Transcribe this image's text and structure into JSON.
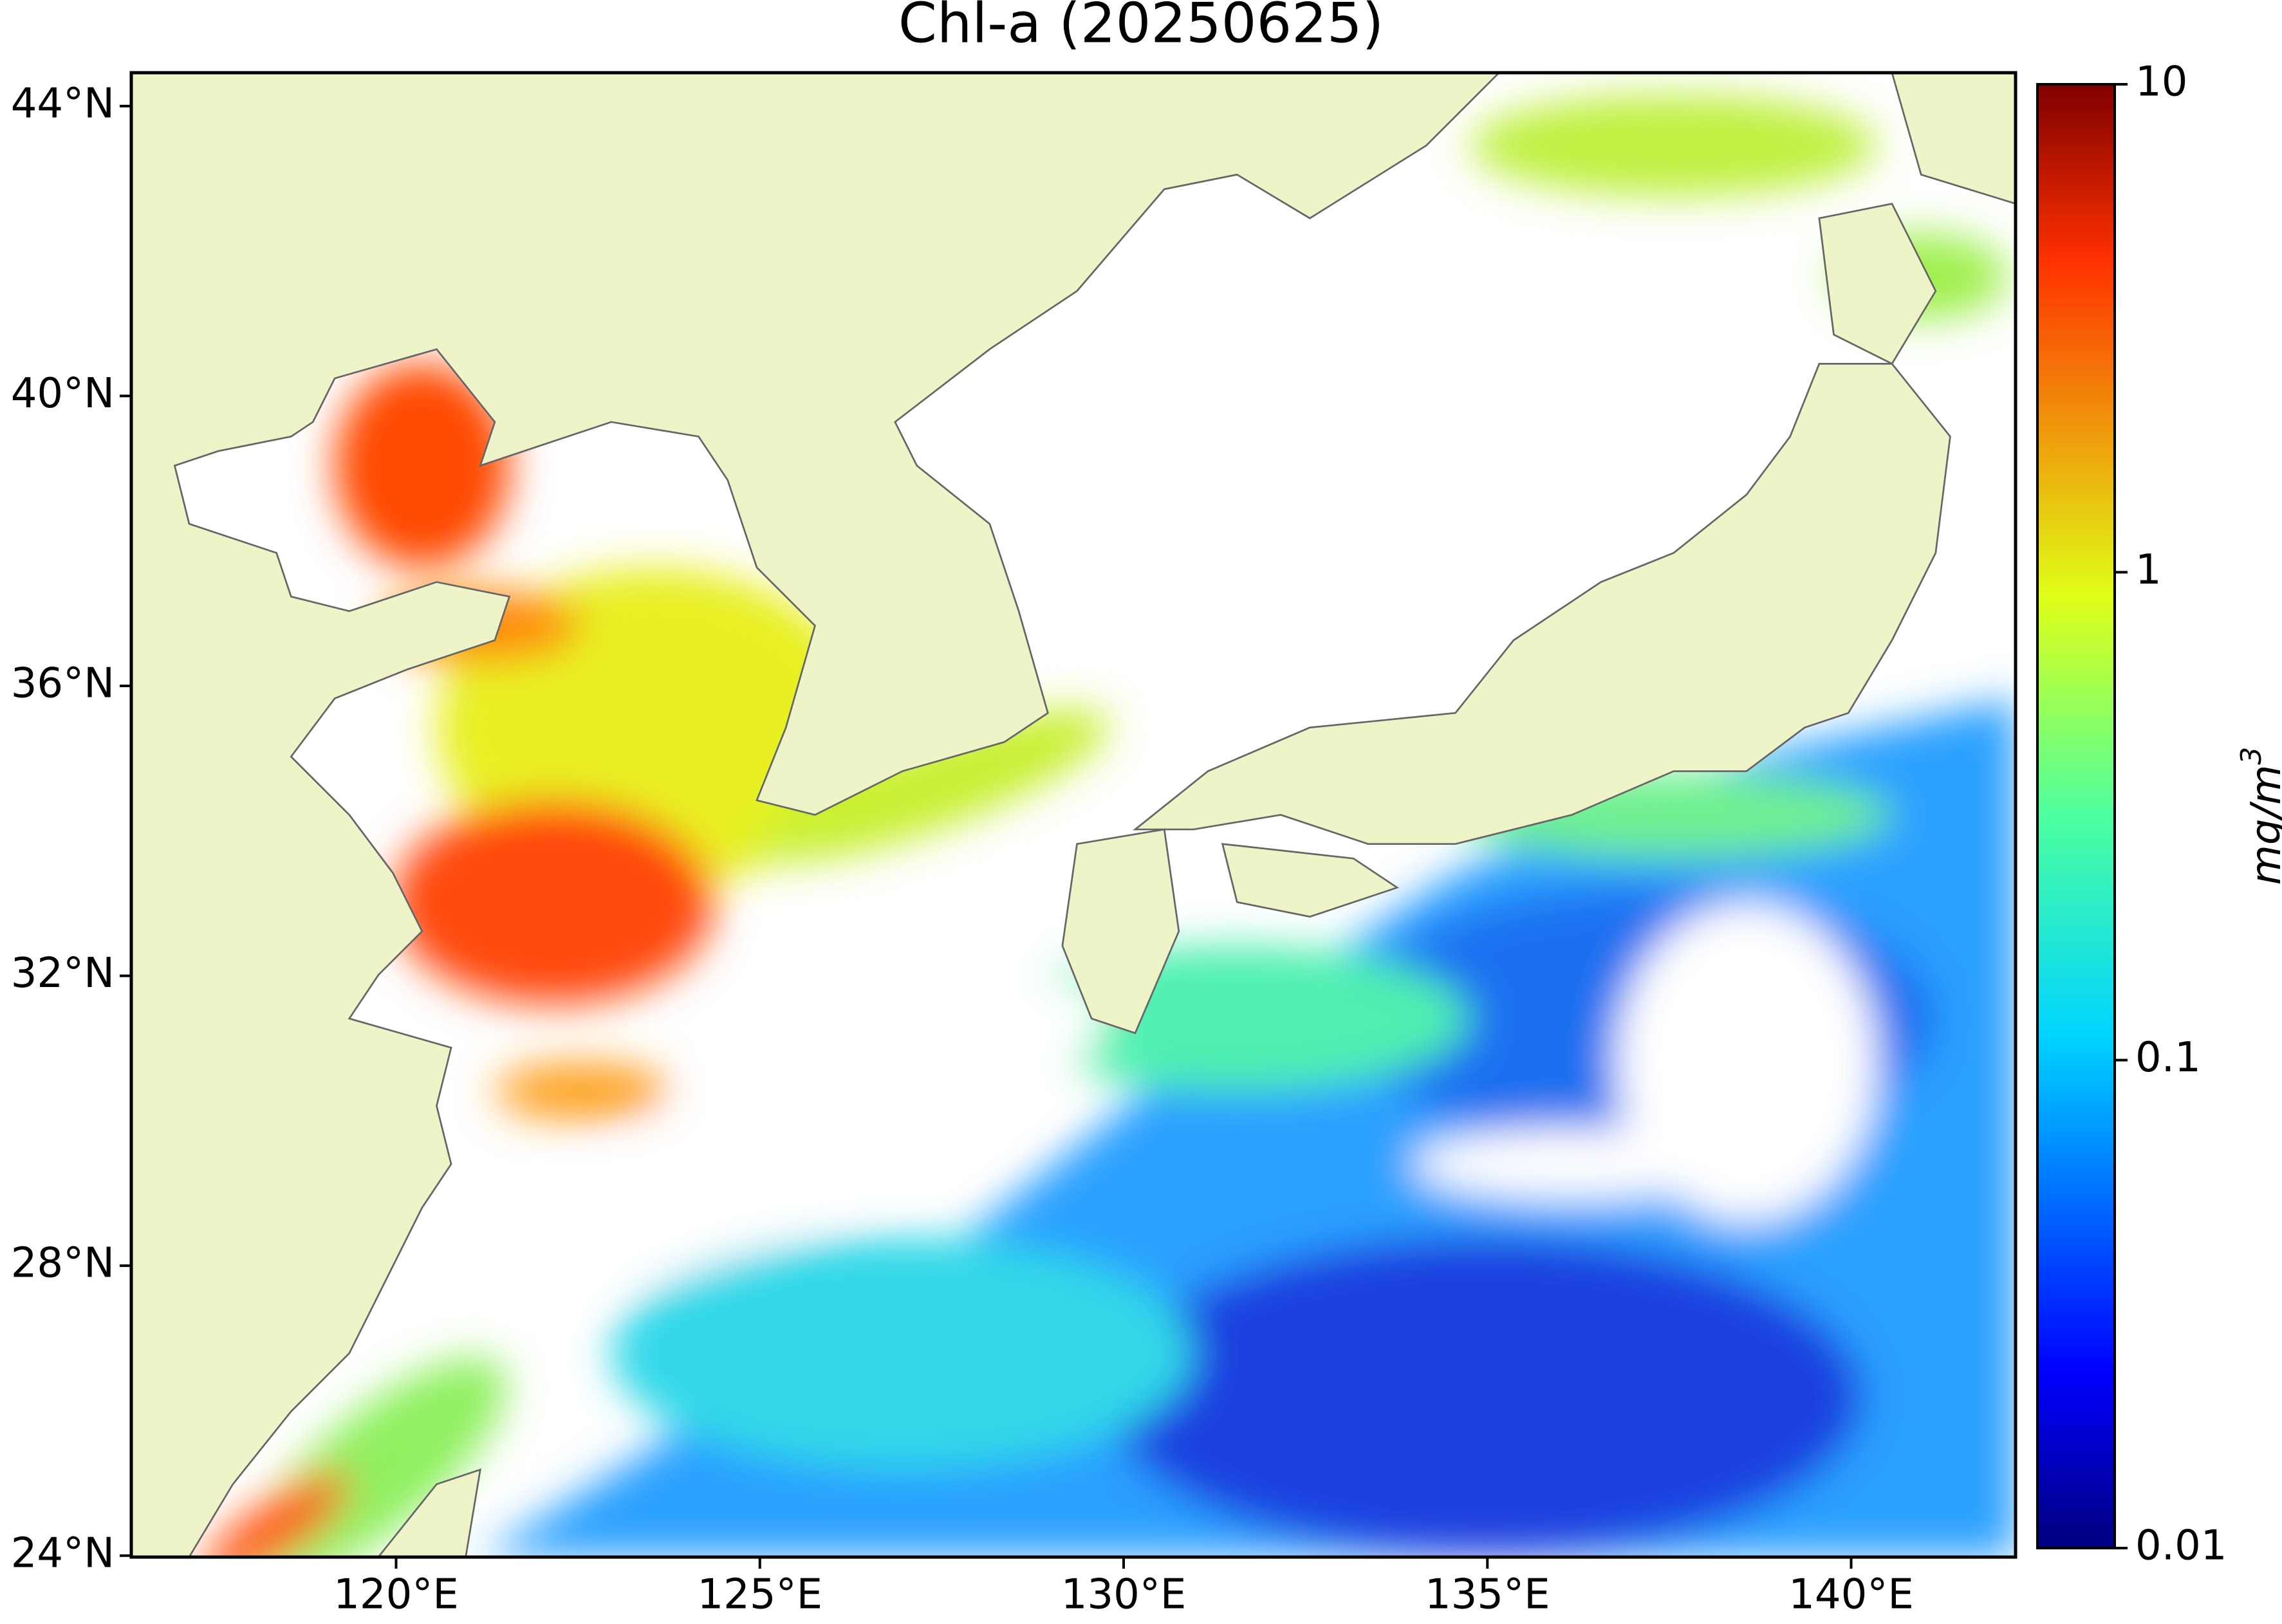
{
  "title": "Chl-a (20250625)",
  "map": {
    "xlim": [
      116.36,
      142.26
    ],
    "ylim": [
      23.98,
      44.46
    ],
    "xticks": [
      {
        "value": 120,
        "label": "120°E"
      },
      {
        "value": 125,
        "label": "125°E"
      },
      {
        "value": 130,
        "label": "130°E"
      },
      {
        "value": 135,
        "label": "135°E"
      },
      {
        "value": 140,
        "label": "140°E"
      }
    ],
    "yticks": [
      {
        "value": 44,
        "label": "44°N"
      },
      {
        "value": 40,
        "label": "40°N"
      },
      {
        "value": 36,
        "label": "36°N"
      },
      {
        "value": 32,
        "label": "32°N"
      },
      {
        "value": 28,
        "label": "28°N"
      },
      {
        "value": 24,
        "label": "24°N"
      }
    ]
  },
  "colorbar": {
    "scale": "log",
    "lim": [
      0.01,
      10
    ],
    "ticks": [
      10,
      1,
      0.1,
      0.01
    ],
    "label": "mg/m",
    "label_superscript": "3"
  }
}
